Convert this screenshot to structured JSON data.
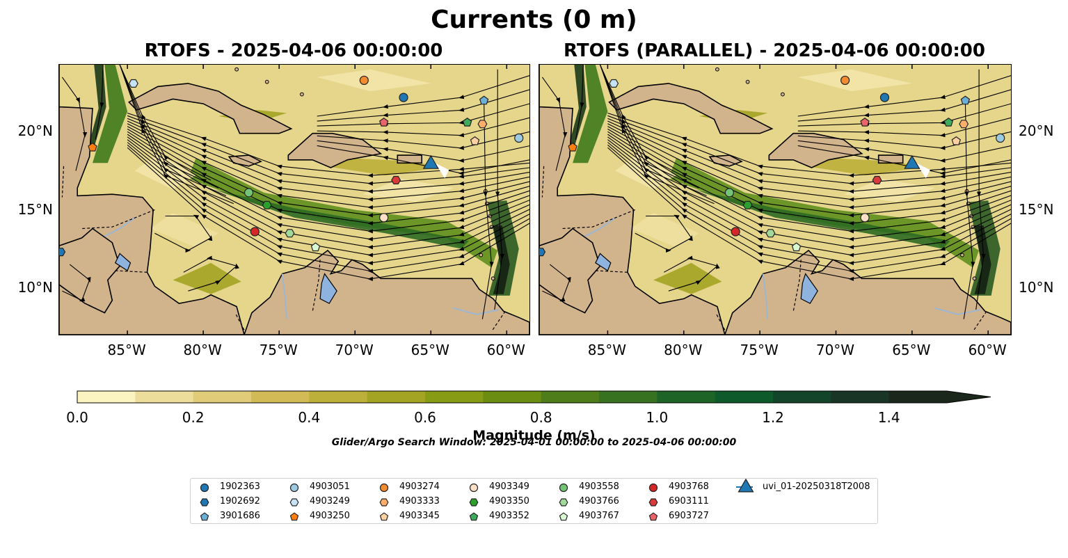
{
  "title": "Currents (0 m)",
  "panels": [
    {
      "title": "RTOFS - 2025-04-06 00:00:00"
    },
    {
      "title": "RTOFS (PARALLEL) - 2025-04-06 00:00:00"
    }
  ],
  "axes": {
    "lon_labels": [
      "85°W",
      "80°W",
      "75°W",
      "70°W",
      "65°W",
      "60°W"
    ],
    "lon_values": [
      -85,
      -80,
      -75,
      -70,
      -65,
      -60
    ],
    "lat_labels": [
      "20°N",
      "15°N",
      "10°N"
    ],
    "lat_values": [
      20,
      15,
      10
    ],
    "lon_range": [
      -89.5,
      -58.5
    ],
    "lat_range": [
      7,
      24.3
    ]
  },
  "colorbar": {
    "label": "Magnitude (m/s)",
    "tick_labels": [
      "0.0",
      "0.2",
      "0.4",
      "0.6",
      "0.8",
      "1.0",
      "1.2",
      "1.4"
    ],
    "tick_values": [
      0.0,
      0.2,
      0.4,
      0.6,
      0.8,
      1.0,
      1.2,
      1.4
    ],
    "range": [
      0.0,
      1.5
    ],
    "extend": "max",
    "colors": [
      "#fbf4c0",
      "#eddd9a",
      "#e0cb78",
      "#d2bb56",
      "#bcaf3a",
      "#a3a424",
      "#879b14",
      "#6b8d12",
      "#4f7d1a",
      "#377220",
      "#1e6426",
      "#0e5a2a",
      "#13452a",
      "#183526",
      "#1b271b"
    ]
  },
  "search_window": "Glider/Argo Search Window: 2025-04-01 00:00:00 to 2025-04-06 00:00:00",
  "colors": {
    "land": "#d2b48c",
    "lake": "#8fb3df",
    "river": "#9fb6d2"
  },
  "legend": [
    {
      "label": "1902363",
      "marker": "circle",
      "color": "#1f77b4"
    },
    {
      "label": "1902692",
      "marker": "hexagon",
      "color": "#1f77b4"
    },
    {
      "label": "3901686",
      "marker": "pentagon",
      "color": "#6baed6"
    },
    {
      "label": "4903051",
      "marker": "circle",
      "color": "#9ecae1"
    },
    {
      "label": "4903249",
      "marker": "hexagon",
      "color": "#c6e2f5"
    },
    {
      "label": "4903250",
      "marker": "pentagon",
      "color": "#ff7f0e"
    },
    {
      "label": "4903274",
      "marker": "circle",
      "color": "#f28a30"
    },
    {
      "label": "4903333",
      "marker": "hexagon",
      "color": "#fdae6b"
    },
    {
      "label": "4903345",
      "marker": "pentagon",
      "color": "#fdd0a2"
    },
    {
      "label": "4903349",
      "marker": "circle",
      "color": "#fde0c5"
    },
    {
      "label": "4903350",
      "marker": "hexagon",
      "color": "#2ca02c"
    },
    {
      "label": "4903352",
      "marker": "pentagon",
      "color": "#41ab5d"
    },
    {
      "label": "4903558",
      "marker": "circle",
      "color": "#74c476"
    },
    {
      "label": "4903766",
      "marker": "hexagon",
      "color": "#a1d99b"
    },
    {
      "label": "4903767",
      "marker": "pentagon",
      "color": "#d9f7d2"
    },
    {
      "label": "4903768",
      "marker": "circle",
      "color": "#d62728"
    },
    {
      "label": "6903111",
      "marker": "hexagon",
      "color": "#d83b3b"
    },
    {
      "label": "6903727",
      "marker": "pentagon",
      "color": "#e9636b"
    },
    {
      "label": "uvi_01-20250318T2008",
      "marker": "triangle",
      "color": "#1f77b4"
    }
  ],
  "observations": [
    {
      "id": "1902363",
      "lon": -66.8,
      "lat": 22.2
    },
    {
      "id": "3901686",
      "lon": -61.5,
      "lat": 22.0
    },
    {
      "id": "4903274",
      "lon": -69.4,
      "lat": 23.3
    },
    {
      "id": "4903051",
      "lon": -59.2,
      "lat": 19.6
    },
    {
      "id": "4903249",
      "lon": -84.6,
      "lat": 23.1
    },
    {
      "id": "4903250",
      "lon": -87.3,
      "lat": 19.0
    },
    {
      "id": "4903333",
      "lon": -61.6,
      "lat": 20.5
    },
    {
      "id": "4903345",
      "lon": -62.1,
      "lat": 19.4
    },
    {
      "id": "4903352",
      "lon": -62.6,
      "lat": 20.6
    },
    {
      "id": "6903727",
      "lon": -68.1,
      "lat": 20.6
    },
    {
      "id": "6903111",
      "lon": -67.3,
      "lat": 16.9
    },
    {
      "id": "4903349",
      "lon": -68.1,
      "lat": 14.5
    },
    {
      "id": "4903558",
      "lon": -77.0,
      "lat": 16.1
    },
    {
      "id": "4903350",
      "lon": -75.8,
      "lat": 15.3
    },
    {
      "id": "4903768",
      "lon": -76.6,
      "lat": 13.6
    },
    {
      "id": "4903766",
      "lon": -74.3,
      "lat": 13.5
    },
    {
      "id": "4903767",
      "lon": -72.6,
      "lat": 12.6
    },
    {
      "id": "1902692",
      "lon": -89.4,
      "lat": 12.3
    },
    {
      "id": "uvi_01-20250318T2008",
      "lon": -65.0,
      "lat": 18.0
    }
  ]
}
